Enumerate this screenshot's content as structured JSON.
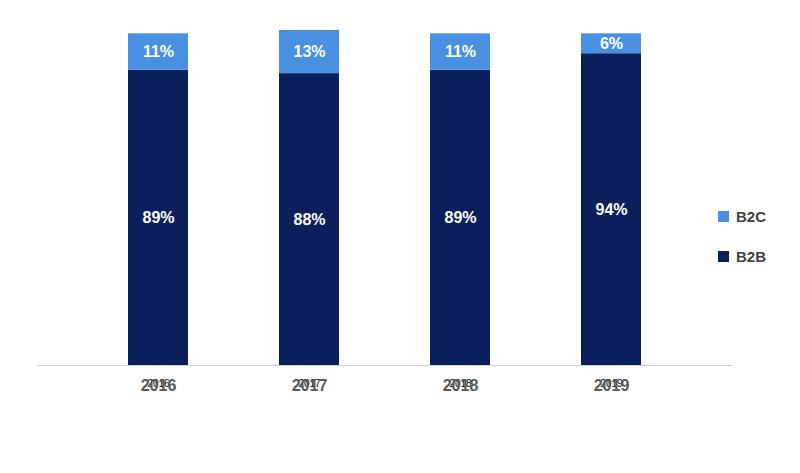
{
  "chart_data": {
    "type": "bar",
    "stacked": true,
    "data_labels": true,
    "tick_labels": "x",
    "legend": "right",
    "categories": [
      "2016",
      "2017",
      "2018",
      "2019"
    ],
    "series": [
      {
        "name": "B2B",
        "color": "#0b1f5c",
        "values": [
          89,
          88,
          89,
          94
        ],
        "value_labels": [
          "89%",
          "88%",
          "89%",
          "94%"
        ]
      },
      {
        "name": "B2C",
        "color": "#4a90e2",
        "values": [
          11,
          13,
          11,
          6
        ],
        "value_labels": [
          "11%",
          "13%",
          "11%",
          "6%"
        ]
      }
    ]
  }
}
